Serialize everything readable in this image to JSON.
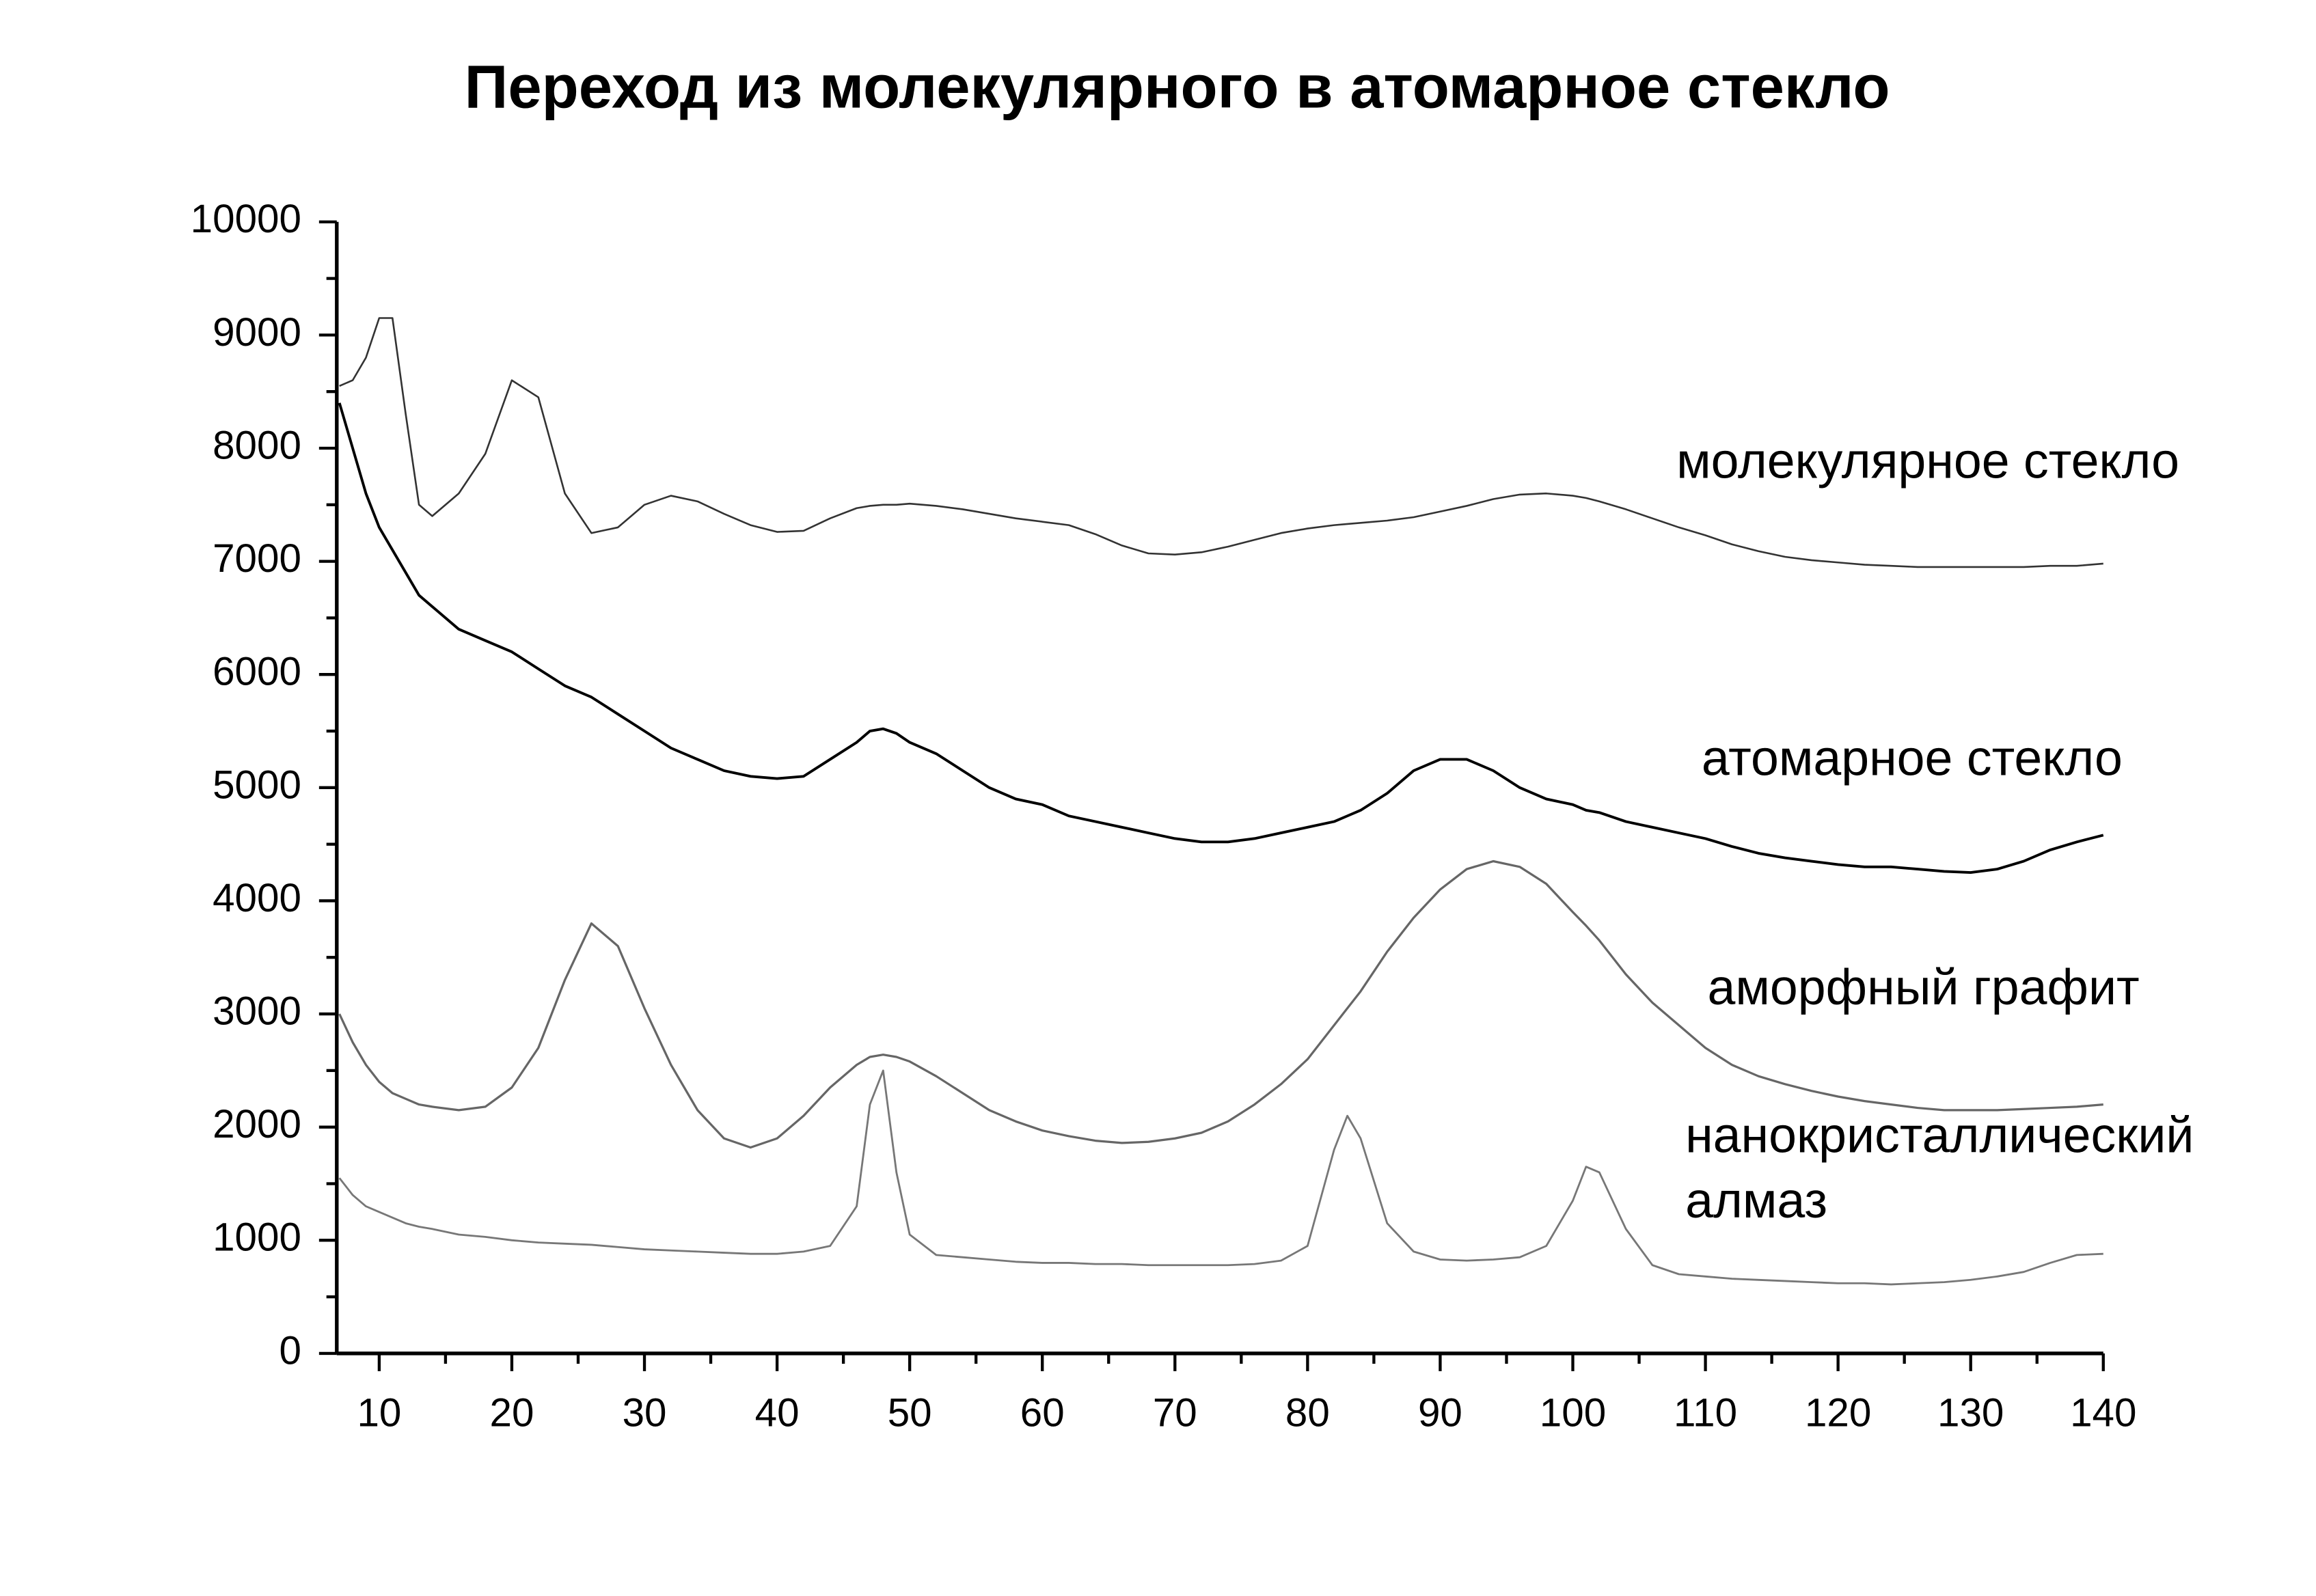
{
  "chart_data": {
    "type": "line",
    "title": "Переход из молекулярного в атомарное стекло",
    "x": [
      7,
      8,
      9,
      10,
      11,
      12,
      13,
      14,
      16,
      18,
      20,
      22,
      24,
      26,
      28,
      30,
      32,
      34,
      36,
      38,
      40,
      42,
      44,
      46,
      47,
      48,
      49,
      50,
      52,
      54,
      56,
      58,
      60,
      62,
      64,
      66,
      68,
      70,
      72,
      74,
      76,
      78,
      80,
      82,
      83,
      84,
      86,
      88,
      90,
      92,
      94,
      96,
      98,
      100,
      101,
      102,
      104,
      106,
      108,
      110,
      112,
      114,
      116,
      118,
      120,
      122,
      124,
      126,
      128,
      130,
      132,
      134,
      136,
      138,
      140
    ],
    "series": [
      {
        "name": "молекулярное стекло",
        "color": "#333333",
        "values": [
          8550,
          8600,
          8800,
          9150,
          9150,
          8300,
          7500,
          7400,
          7600,
          7950,
          8600,
          8450,
          7600,
          7250,
          7300,
          7500,
          7580,
          7530,
          7420,
          7320,
          7260,
          7270,
          7380,
          7470,
          7490,
          7500,
          7500,
          7510,
          7490,
          7460,
          7420,
          7380,
          7350,
          7320,
          7240,
          7140,
          7070,
          7060,
          7080,
          7130,
          7190,
          7250,
          7290,
          7320,
          7330,
          7340,
          7360,
          7390,
          7440,
          7490,
          7550,
          7590,
          7600,
          7580,
          7560,
          7530,
          7460,
          7380,
          7300,
          7230,
          7150,
          7090,
          7040,
          7010,
          6990,
          6970,
          6960,
          6950,
          6950,
          6950,
          6950,
          6950,
          6960,
          6960,
          6980
        ]
      },
      {
        "name": "атомарное стекло",
        "color": "#000000",
        "values": [
          8400,
          8000,
          7600,
          7300,
          7100,
          6900,
          6700,
          6600,
          6400,
          6300,
          6200,
          6050,
          5900,
          5800,
          5650,
          5500,
          5350,
          5250,
          5150,
          5100,
          5080,
          5100,
          5250,
          5400,
          5500,
          5520,
          5480,
          5400,
          5300,
          5150,
          5000,
          4900,
          4850,
          4750,
          4700,
          4650,
          4600,
          4550,
          4520,
          4520,
          4550,
          4600,
          4650,
          4700,
          4750,
          4800,
          4950,
          5150,
          5250,
          5250,
          5150,
          5000,
          4900,
          4850,
          4800,
          4780,
          4700,
          4650,
          4600,
          4550,
          4480,
          4420,
          4380,
          4350,
          4320,
          4300,
          4300,
          4280,
          4260,
          4250,
          4280,
          4350,
          4450,
          4520,
          4580
        ]
      },
      {
        "name": "аморфный графит",
        "color": "#666666",
        "values": [
          3000,
          2750,
          2550,
          2400,
          2300,
          2250,
          2200,
          2180,
          2150,
          2180,
          2350,
          2700,
          3300,
          3800,
          3600,
          3050,
          2550,
          2150,
          1900,
          1820,
          1900,
          2100,
          2350,
          2550,
          2620,
          2640,
          2620,
          2580,
          2450,
          2300,
          2150,
          2050,
          1970,
          1920,
          1880,
          1860,
          1870,
          1900,
          1950,
          2050,
          2200,
          2380,
          2600,
          2900,
          3050,
          3200,
          3550,
          3850,
          4100,
          4280,
          4350,
          4300,
          4150,
          3900,
          3780,
          3650,
          3350,
          3100,
          2900,
          2700,
          2550,
          2450,
          2380,
          2320,
          2270,
          2230,
          2200,
          2170,
          2150,
          2150,
          2150,
          2160,
          2170,
          2180,
          2200
        ]
      },
      {
        "name": "нанокристаллический алмаз",
        "color": "#777777",
        "values": [
          1550,
          1400,
          1300,
          1250,
          1200,
          1150,
          1120,
          1100,
          1050,
          1030,
          1000,
          980,
          970,
          960,
          940,
          920,
          910,
          900,
          890,
          880,
          880,
          900,
          950,
          1300,
          2200,
          2500,
          1600,
          1050,
          870,
          850,
          830,
          810,
          800,
          800,
          790,
          790,
          780,
          780,
          780,
          780,
          790,
          820,
          950,
          1800,
          2100,
          1900,
          1150,
          900,
          830,
          820,
          830,
          850,
          950,
          1350,
          1650,
          1600,
          1100,
          780,
          700,
          680,
          660,
          650,
          640,
          630,
          620,
          620,
          610,
          620,
          630,
          650,
          680,
          720,
          800,
          870,
          880
        ]
      }
    ],
    "xlim": [
      6.8,
      140
    ],
    "xticks": [
      10,
      20,
      30,
      40,
      50,
      60,
      70,
      80,
      90,
      100,
      110,
      120,
      130,
      140
    ],
    "ylim": [
      0,
      10000
    ],
    "yticks": [
      0,
      1000,
      2000,
      3000,
      4000,
      5000,
      6000,
      7000,
      8000,
      9000,
      10000
    ],
    "grid": false
  }
}
